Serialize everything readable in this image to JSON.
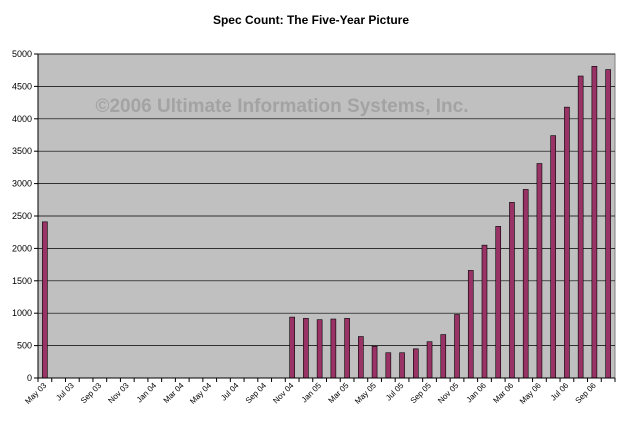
{
  "chart_data": {
    "type": "bar",
    "title": "Spec Count: The Five-Year Picture",
    "watermark": "©2006 Ultimate Information Systems, Inc.",
    "xlabel": "",
    "ylabel": "",
    "ylim": [
      0,
      5000
    ],
    "yticks": [
      0,
      500,
      1000,
      1500,
      2000,
      2500,
      3000,
      3500,
      4000,
      4500,
      5000
    ],
    "grid": true,
    "legend": "none",
    "colors": {
      "plot_background": "#c0c0c0",
      "bar_fill": "#993366",
      "bar_stroke": "#000000",
      "gridline": "#000000",
      "watermark": "#a3a3a3"
    },
    "categories": [
      "May 03",
      "Jun 03",
      "Jul 03",
      "Aug 03",
      "Sep 03",
      "Oct 03",
      "Nov 03",
      "Dec 03",
      "Jan 04",
      "Feb 04",
      "Mar 04",
      "Apr 04",
      "May 04",
      "Jun 04",
      "Jul 04",
      "Aug 04",
      "Sep 04",
      "Oct 04",
      "Nov 04",
      "Dec 04",
      "Jan 05",
      "Feb 05",
      "Mar 05",
      "Apr 05",
      "May 05",
      "Jun 05",
      "Jul 05",
      "Aug 05",
      "Sep 05",
      "Oct 05",
      "Nov 05",
      "Dec 05",
      "Jan 06",
      "Feb 06",
      "Mar 06",
      "Apr 06",
      "May 06",
      "Jun 06",
      "Jul 06",
      "Aug 06",
      "Sep 06",
      "Oct 06"
    ],
    "tick_labels": [
      "May 03",
      "Jul 03",
      "Sep 03",
      "Nov 03",
      "Jan 04",
      "Mar 04",
      "May 04",
      "Jul 04",
      "Sep 04",
      "Nov 04",
      "Jan 05",
      "Mar 05",
      "May 05",
      "Jul 05",
      "Sep 05",
      "Nov 05",
      "Jan 06",
      "Mar 06",
      "May 06",
      "Jul 06",
      "Sep 06"
    ],
    "values": [
      2410,
      null,
      null,
      null,
      null,
      null,
      null,
      null,
      null,
      null,
      null,
      null,
      null,
      null,
      null,
      null,
      null,
      null,
      940,
      920,
      900,
      910,
      920,
      640,
      490,
      390,
      390,
      450,
      560,
      670,
      980,
      1660,
      2050,
      2340,
      2710,
      2910,
      3310,
      3740,
      4180,
      4660,
      4810,
      4760
    ]
  }
}
